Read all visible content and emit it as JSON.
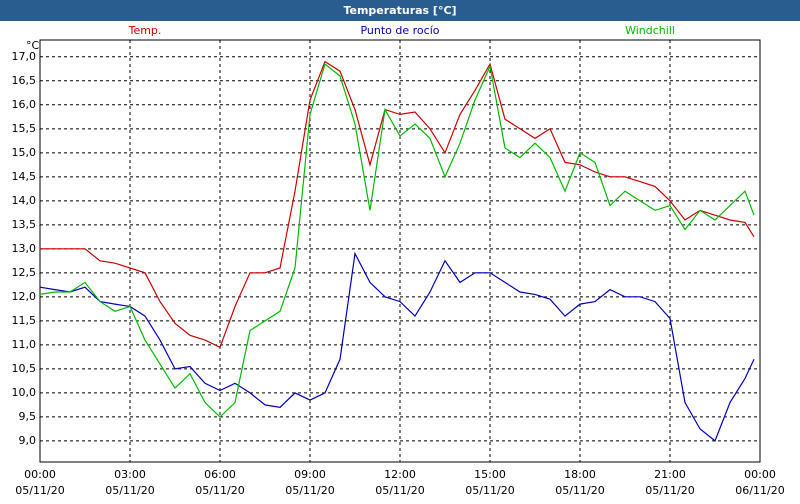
{
  "chart_data": {
    "type": "line",
    "title": "Temperaturas [°C]",
    "y_label": "°C",
    "x": [
      0,
      0.5,
      1,
      1.5,
      2,
      2.5,
      3,
      3.5,
      4,
      4.5,
      5,
      5.5,
      6,
      6.5,
      7,
      7.5,
      8,
      8.5,
      9,
      9.5,
      10,
      10.5,
      11,
      11.5,
      12,
      12.5,
      13,
      13.5,
      14,
      14.5,
      15,
      15.5,
      16,
      16.5,
      17,
      17.5,
      18,
      18.5,
      19,
      19.5,
      20,
      20.5,
      21,
      21.5,
      22,
      22.5,
      23,
      23.5,
      23.8
    ],
    "series": [
      {
        "name": "Temp.",
        "color": "#cc0000",
        "values": [
          13.0,
          13.0,
          13.0,
          13.0,
          12.75,
          12.7,
          12.6,
          12.5,
          11.9,
          11.45,
          11.2,
          11.1,
          10.95,
          11.8,
          12.5,
          12.5,
          12.6,
          14.2,
          16.1,
          16.9,
          16.7,
          15.9,
          14.75,
          15.9,
          15.8,
          15.85,
          15.5,
          15.0,
          15.8,
          16.3,
          16.85,
          15.7,
          15.5,
          15.3,
          15.5,
          14.8,
          14.75,
          14.6,
          14.5,
          14.5,
          14.4,
          14.3,
          14.0,
          13.6,
          13.8,
          13.7,
          13.6,
          13.55,
          13.25
        ]
      },
      {
        "name": "Punto de rocío",
        "color": "#0000bb",
        "values": [
          12.2,
          12.15,
          12.1,
          12.2,
          11.9,
          11.85,
          11.8,
          11.6,
          11.1,
          10.5,
          10.55,
          10.2,
          10.05,
          10.2,
          10.0,
          9.75,
          9.7,
          10.0,
          9.85,
          10.0,
          10.7,
          12.9,
          12.3,
          12.0,
          11.9,
          11.6,
          12.1,
          12.75,
          12.3,
          12.5,
          12.5,
          12.3,
          12.1,
          12.05,
          11.95,
          11.6,
          11.85,
          11.9,
          12.15,
          12.0,
          12.0,
          11.9,
          11.55,
          9.8,
          9.25,
          9.0,
          9.8,
          10.3,
          10.7
        ]
      },
      {
        "name": "Windchill",
        "color": "#00bb00",
        "values": [
          12.05,
          12.1,
          12.1,
          12.3,
          11.9,
          11.7,
          11.8,
          11.1,
          10.6,
          10.1,
          10.4,
          9.8,
          9.5,
          9.8,
          11.3,
          11.5,
          11.7,
          12.6,
          15.8,
          16.85,
          16.6,
          15.6,
          13.8,
          15.9,
          15.35,
          15.6,
          15.3,
          14.5,
          15.2,
          16.1,
          16.8,
          15.1,
          14.9,
          15.2,
          14.9,
          14.2,
          15.0,
          14.8,
          13.9,
          14.2,
          14.0,
          13.8,
          13.9,
          13.4,
          13.8,
          13.6,
          13.9,
          14.2,
          13.7
        ]
      }
    ],
    "xlim": [
      0,
      24
    ],
    "ylim": [
      8.56,
      17.35
    ],
    "xticks": [
      {
        "value": 0,
        "label": "00:00",
        "date": "05/11/20"
      },
      {
        "value": 3,
        "label": "03:00",
        "date": "05/11/20"
      },
      {
        "value": 6,
        "label": "06:00",
        "date": "05/11/20"
      },
      {
        "value": 9,
        "label": "09:00",
        "date": "05/11/20"
      },
      {
        "value": 12,
        "label": "12:00",
        "date": "05/11/20"
      },
      {
        "value": 15,
        "label": "15:00",
        "date": "05/11/20"
      },
      {
        "value": 18,
        "label": "18:00",
        "date": "05/11/20"
      },
      {
        "value": 21,
        "label": "21:00",
        "date": "05/11/20"
      },
      {
        "value": 24,
        "label": "00:00",
        "date": "06/11/20"
      }
    ],
    "yticks": [
      {
        "value": 9,
        "label": "9,0"
      },
      {
        "value": 9.5,
        "label": "9,5"
      },
      {
        "value": 10,
        "label": "10,0"
      },
      {
        "value": 10.5,
        "label": "10,5"
      },
      {
        "value": 11,
        "label": "11,0"
      },
      {
        "value": 11.5,
        "label": "11,5"
      },
      {
        "value": 12,
        "label": "12,0"
      },
      {
        "value": 12.5,
        "label": "12,5"
      },
      {
        "value": 13,
        "label": "13,0"
      },
      {
        "value": 13.5,
        "label": "13,5"
      },
      {
        "value": 14,
        "label": "14,0"
      },
      {
        "value": 14.5,
        "label": "14,5"
      },
      {
        "value": 15,
        "label": "15,0"
      },
      {
        "value": 15.5,
        "label": "15,5"
      },
      {
        "value": 16,
        "label": "16,0"
      },
      {
        "value": 16.5,
        "label": "16,5"
      },
      {
        "value": 17,
        "label": "17,0"
      }
    ],
    "grid": true
  }
}
